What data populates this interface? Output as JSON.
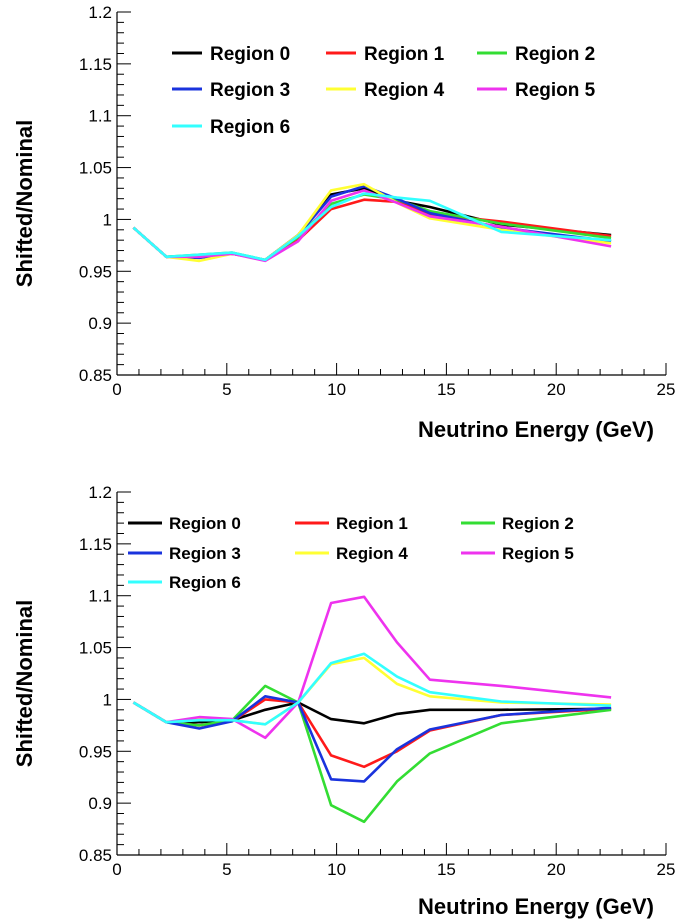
{
  "chart_data": [
    {
      "type": "line",
      "title": "",
      "xlabel": "Neutrino Energy (GeV)",
      "ylabel": "Shifted/Nominal",
      "xlim": [
        0,
        25
      ],
      "ylim": [
        0.85,
        1.2
      ],
      "x_ticks": [
        "0",
        "5",
        "10",
        "15",
        "20",
        "25"
      ],
      "y_ticks": [
        "0.85",
        "0.9",
        "0.95",
        "1",
        "1.05",
        "1.1",
        "1.15",
        "1.2"
      ],
      "grid": false,
      "legend": "top",
      "x": [
        0.75,
        2.25,
        3.75,
        5.25,
        6.75,
        8.25,
        9.75,
        11.25,
        12.75,
        14.25,
        17.5,
        22.5
      ],
      "series": [
        {
          "name": "Region 0",
          "color": "#000000",
          "values": [
            0.992,
            0.964,
            0.965,
            0.967,
            0.961,
            0.985,
            1.024,
            1.03,
            1.018,
            1.012,
            0.995,
            0.985
          ]
        },
        {
          "name": "Region 1",
          "color": "#ff1a1a",
          "values": [
            0.992,
            0.964,
            0.964,
            0.967,
            0.961,
            0.98,
            1.01,
            1.019,
            1.017,
            1.005,
            0.998,
            0.984
          ]
        },
        {
          "name": "Region 2",
          "color": "#33dd33",
          "values": [
            0.992,
            0.964,
            0.966,
            0.968,
            0.961,
            0.983,
            1.015,
            1.024,
            1.019,
            1.008,
            0.996,
            0.982
          ]
        },
        {
          "name": "Region 3",
          "color": "#1a33dd",
          "values": [
            0.992,
            0.964,
            0.963,
            0.967,
            0.961,
            0.985,
            1.022,
            1.032,
            1.02,
            1.006,
            0.992,
            0.979
          ]
        },
        {
          "name": "Region 4",
          "color": "#ffff33",
          "values": [
            0.992,
            0.964,
            0.96,
            0.967,
            0.961,
            0.985,
            1.028,
            1.034,
            1.016,
            1.001,
            0.99,
            0.977
          ]
        },
        {
          "name": "Region 5",
          "color": "#ee33ee",
          "values": [
            0.992,
            0.964,
            0.964,
            0.967,
            0.96,
            0.979,
            1.018,
            1.028,
            1.016,
            1.003,
            0.993,
            0.974
          ]
        },
        {
          "name": "Region 6",
          "color": "#33ffff",
          "values": [
            0.992,
            0.964,
            0.966,
            0.968,
            0.961,
            0.984,
            1.012,
            1.025,
            1.021,
            1.018,
            0.988,
            0.98
          ]
        }
      ]
    },
    {
      "type": "line",
      "title": "",
      "xlabel": "Neutrino Energy (GeV)",
      "ylabel": "Shifted/Nominal",
      "xlim": [
        0,
        25
      ],
      "ylim": [
        0.85,
        1.2
      ],
      "x_ticks": [
        "0",
        "5",
        "10",
        "15",
        "20",
        "25"
      ],
      "y_ticks": [
        "0.85",
        "0.9",
        "0.95",
        "1",
        "1.05",
        "1.1",
        "1.15",
        "1.2"
      ],
      "grid": false,
      "legend": "top",
      "x": [
        0.75,
        2.25,
        3.75,
        5.25,
        6.75,
        8.25,
        9.75,
        11.25,
        12.75,
        14.25,
        17.5,
        22.5
      ],
      "series": [
        {
          "name": "Region 0",
          "color": "#000000",
          "values": [
            0.997,
            0.978,
            0.978,
            0.98,
            0.99,
            0.997,
            0.981,
            0.977,
            0.986,
            0.99,
            0.99,
            0.991
          ]
        },
        {
          "name": "Region 1",
          "color": "#ff1a1a",
          "values": [
            0.997,
            0.978,
            0.975,
            0.979,
            1.0,
            0.997,
            0.946,
            0.935,
            0.95,
            0.97,
            0.985,
            0.991
          ]
        },
        {
          "name": "Region 2",
          "color": "#33dd33",
          "values": [
            0.997,
            0.978,
            0.975,
            0.98,
            1.013,
            0.997,
            0.898,
            0.882,
            0.921,
            0.948,
            0.977,
            0.99
          ]
        },
        {
          "name": "Region 3",
          "color": "#1a33dd",
          "values": [
            0.997,
            0.978,
            0.972,
            0.979,
            1.003,
            0.997,
            0.923,
            0.921,
            0.952,
            0.971,
            0.985,
            0.992
          ]
        },
        {
          "name": "Region 4",
          "color": "#ffff33",
          "values": [
            0.997,
            0.978,
            0.981,
            0.98,
            0.976,
            0.997,
            1.034,
            1.04,
            1.015,
            1.003,
            0.997,
            0.995
          ]
        },
        {
          "name": "Region 5",
          "color": "#ee33ee",
          "values": [
            0.997,
            0.978,
            0.983,
            0.981,
            0.963,
            0.997,
            1.093,
            1.099,
            1.055,
            1.019,
            1.013,
            1.002
          ]
        },
        {
          "name": "Region 6",
          "color": "#33ffff",
          "values": [
            0.997,
            0.978,
            0.98,
            0.98,
            0.976,
            0.997,
            1.035,
            1.044,
            1.022,
            1.007,
            0.998,
            0.994
          ]
        }
      ]
    }
  ]
}
